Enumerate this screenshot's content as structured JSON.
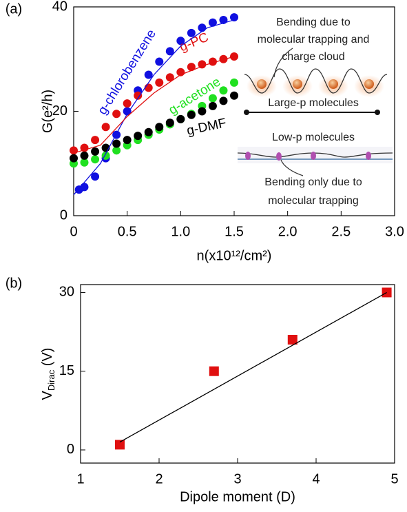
{
  "chart_data": [
    {
      "type": "scatter",
      "panel_label": "(a)",
      "xlabel": "n(x10¹²/cm²)",
      "ylabel": "G(e²/h)",
      "xlim": [
        0,
        3
      ],
      "ylim": [
        0,
        40
      ],
      "xticks": [
        0,
        0.5,
        {
          "value": 1,
          "label": "1.0"
        },
        1.5,
        {
          "value": 2,
          "label": "2.0"
        },
        2.5,
        {
          "value": 3,
          "label": "3.0"
        }
      ],
      "yticks": [
        0,
        20,
        40
      ],
      "series": [
        {
          "name": "g-chlorobenzene",
          "color": "#1010e0",
          "marker": "circle",
          "x": [
            0.05,
            0.1,
            0.2,
            0.3,
            0.4,
            0.5,
            0.6,
            0.7,
            0.8,
            0.9,
            1.0,
            1.1,
            1.2,
            1.3,
            1.4,
            1.5
          ],
          "values": [
            5,
            5.5,
            7.5,
            11,
            15.5,
            20,
            24,
            27,
            29.5,
            31.5,
            33.5,
            35,
            36,
            37,
            37.5,
            38
          ]
        },
        {
          "name": "g-PC",
          "color": "#e01010",
          "marker": "circle",
          "x": [
            0,
            0.1,
            0.2,
            0.3,
            0.4,
            0.5,
            0.6,
            0.7,
            0.8,
            0.9,
            1.0,
            1.1,
            1.2,
            1.3,
            1.4,
            1.5
          ],
          "values": [
            12.5,
            13,
            14.5,
            17,
            19.5,
            21.5,
            23,
            24.5,
            25.5,
            26.5,
            27.5,
            28.5,
            29,
            29.5,
            30,
            30.5
          ]
        },
        {
          "name": "g-acetone",
          "color": "#20e020",
          "marker": "circle",
          "x": [
            0,
            0.1,
            0.2,
            0.3,
            0.4,
            0.5,
            0.6,
            0.7,
            0.8,
            0.9,
            1.0,
            1.1,
            1.2,
            1.3,
            1.4,
            1.5
          ],
          "values": [
            10,
            10.2,
            10.8,
            11.5,
            12.5,
            13.5,
            14.5,
            15.5,
            16.5,
            17.5,
            18.5,
            19.5,
            21,
            22.5,
            24,
            25.5
          ]
        },
        {
          "name": "g-DMF",
          "color": "#000000",
          "marker": "circle",
          "x": [
            0,
            0.1,
            0.2,
            0.3,
            0.4,
            0.5,
            0.6,
            0.7,
            0.8,
            0.9,
            1.0,
            1.1,
            1.2,
            1.3,
            1.4,
            1.5
          ],
          "values": [
            11,
            11.5,
            12.3,
            13,
            13.8,
            14.5,
            15.3,
            16,
            17,
            17.8,
            18.5,
            19.3,
            20,
            21,
            22,
            23
          ]
        },
        {
          "color": "#1010e0",
          "marker": "line",
          "x": [
            0,
            0.25,
            0.5,
            0.75,
            1.0,
            1.25,
            1.5
          ],
          "values": [
            4,
            10,
            19.5,
            27,
            32.5,
            36,
            37.5
          ]
        },
        {
          "color": "#e01010",
          "marker": "line",
          "x": [
            0,
            0.25,
            0.5,
            0.75,
            1.0,
            1.25,
            1.5
          ],
          "values": [
            12,
            13.5,
            19,
            23.5,
            27,
            29,
            30.5
          ]
        }
      ],
      "annotations": [
        "Bending due to",
        "molecular trapping and",
        "charge cloud",
        "Large-p molecules",
        "Low-p molecules",
        "Bending only due to",
        "molecular trapping"
      ]
    },
    {
      "type": "scatter",
      "panel_label": "(b)",
      "xlabel": "Dipole moment (D)",
      "ylabel": [
        "V",
        "Dirac",
        " (V)"
      ],
      "xlim": [
        1,
        5
      ],
      "ylim": [
        -2.5,
        31.5
      ],
      "xticks": [
        1,
        2,
        3,
        4,
        5
      ],
      "yticks": [
        0,
        15,
        30
      ],
      "series": [
        {
          "color": "#e01010",
          "marker": "square",
          "x": [
            1.5,
            2.7,
            3.7,
            4.9
          ],
          "values": [
            1,
            15,
            21,
            30
          ]
        },
        {
          "color": "#000000",
          "marker": "line",
          "x": [
            1.5,
            4.9
          ],
          "values": [
            1.5,
            30
          ]
        }
      ]
    }
  ]
}
